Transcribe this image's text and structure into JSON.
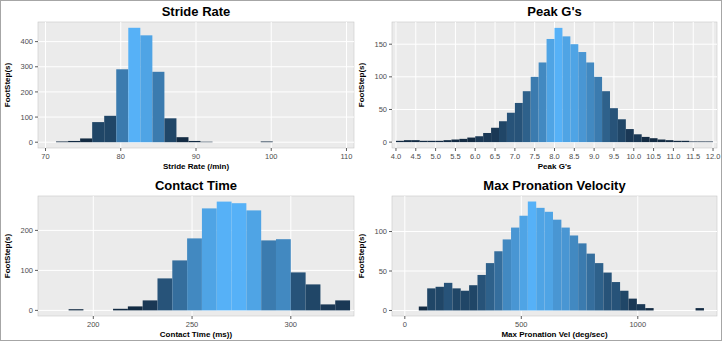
{
  "chart_data": [
    {
      "type": "histogram",
      "title": "Stride Rate",
      "x_label": "Stride Rate (/min)",
      "y_label": "FootStep(s)",
      "bins": [
        71.4,
        73,
        74.6,
        76.2,
        77.8,
        79.4,
        81,
        82.6,
        84.2,
        85.8,
        87.4,
        89,
        90.6,
        92.2,
        93.8,
        95.4,
        97,
        98.6,
        100.2
      ],
      "values": [
        3,
        5,
        15,
        80,
        105,
        290,
        455,
        425,
        280,
        95,
        20,
        5,
        2,
        0,
        0,
        0,
        0,
        3
      ],
      "colors": [
        "#132B43",
        "#132B43",
        "#132B43",
        "#204667",
        "#204667",
        "#3B7BAF",
        "#56B1F7",
        "#4FA4E5",
        "#3B7BAF",
        "#204667",
        "#132B43",
        "#132B43",
        "#132B43",
        "#132B43",
        "#132B43",
        "#132B43",
        "#132B43",
        "#132B43"
      ],
      "xlim": [
        69,
        111
      ],
      "xticks": [
        70,
        80,
        90,
        100,
        110
      ],
      "ylim": [
        -23,
        478
      ],
      "yticks": [
        0,
        100,
        200,
        300,
        400
      ],
      "grid": true
    },
    {
      "type": "histogram",
      "title": "Peak G's",
      "x_label": "Peak G's",
      "y_label": "FootStep(s)",
      "bins": [
        4,
        4.2,
        4.4,
        4.6,
        4.8,
        5,
        5.2,
        5.4,
        5.6,
        5.8,
        6,
        6.2,
        6.4,
        6.6,
        6.8,
        7,
        7.2,
        7.4,
        7.6,
        7.8,
        8,
        8.2,
        8.4,
        8.6,
        8.8,
        9,
        9.2,
        9.4,
        9.6,
        9.8,
        10,
        10.2,
        10.4,
        10.6,
        10.8,
        11,
        11.2,
        11.4,
        11.6,
        11.8,
        12
      ],
      "values": [
        2,
        3,
        3,
        2,
        2,
        2,
        3,
        4,
        5,
        7,
        9,
        14,
        22,
        32,
        45,
        60,
        78,
        100,
        122,
        158,
        175,
        162,
        150,
        138,
        122,
        100,
        78,
        52,
        35,
        20,
        12,
        8,
        6,
        4,
        3,
        2,
        2,
        1,
        1,
        1
      ],
      "colors": [
        "#132B43",
        "#132B43",
        "#132B43",
        "#132B43",
        "#132B43",
        "#132B43",
        "#132B43",
        "#132B43",
        "#132B43",
        "#132B43",
        "#1A3855",
        "#1A3855",
        "#1A3855",
        "#204667",
        "#275379",
        "#275379",
        "#2E618B",
        "#3B7BAF",
        "#4289C1",
        "#4FA4E5",
        "#56B1F7",
        "#4FA4E5",
        "#4FA4E5",
        "#4996D3",
        "#4289C1",
        "#3B7BAF",
        "#2E618B",
        "#275379",
        "#204667",
        "#1A3855",
        "#1A3855",
        "#132B43",
        "#132B43",
        "#132B43",
        "#132B43",
        "#132B43",
        "#132B43",
        "#132B43",
        "#132B43",
        "#132B43"
      ],
      "xlim": [
        3.9,
        12.1
      ],
      "xticks": [
        {
          "value": 4,
          "label": "4.0"
        },
        4.5,
        {
          "value": 5,
          "label": "5.0"
        },
        5.5,
        {
          "value": 6,
          "label": "6.0"
        },
        6.5,
        {
          "value": 7,
          "label": "7.0"
        },
        7.5,
        {
          "value": 8,
          "label": "8.0"
        },
        8.5,
        {
          "value": 9,
          "label": "9.0"
        },
        9.5,
        {
          "value": 10,
          "label": "10.0"
        },
        10.5,
        {
          "value": 11,
          "label": "11.0"
        },
        11.5,
        {
          "value": 12,
          "label": "12.0"
        }
      ],
      "ylim": [
        -9,
        184
      ],
      "yticks": [
        0,
        50,
        100,
        150
      ],
      "grid": true
    },
    {
      "type": "histogram",
      "title": "Contact Time",
      "x_label": "Contact Time (ms))",
      "y_label": "FootStep(s)",
      "bins": [
        187.5,
        195,
        202.5,
        210,
        217.5,
        225,
        232.5,
        240,
        247.5,
        255,
        262.5,
        270,
        277.5,
        285,
        292.5,
        300,
        307.5,
        315,
        322.5,
        330
      ],
      "values": [
        3,
        0,
        0,
        4,
        10,
        25,
        80,
        125,
        180,
        255,
        272,
        268,
        250,
        175,
        178,
        95,
        65,
        15,
        25
      ],
      "colors": [
        "#132B43",
        "#132B43",
        "#132B43",
        "#132B43",
        "#132B43",
        "#1A3855",
        "#275379",
        "#356E9D",
        "#4289C1",
        "#4FA4E5",
        "#56B1F7",
        "#56B1F7",
        "#4FA4E5",
        "#3B7BAF",
        "#4289C1",
        "#275379",
        "#204667",
        "#1A3855",
        "#1A3855"
      ],
      "xlim": [
        172,
        332
      ],
      "xticks": [
        200,
        250,
        300
      ],
      "ylim": [
        -14,
        286
      ],
      "yticks": [
        0,
        100,
        200
      ],
      "grid": true
    },
    {
      "type": "histogram",
      "title": "Max Pronation Velocity",
      "x_label": "Max Pronation Vel (deg/sec)",
      "y_label": "FootStep(s)",
      "bins": [
        60,
        96,
        132,
        168,
        204,
        240,
        276,
        312,
        348,
        384,
        420,
        456,
        492,
        528,
        564,
        600,
        636,
        672,
        708,
        744,
        780,
        816,
        852,
        888,
        924,
        960,
        996,
        1032,
        1068,
        1104,
        1140,
        1176,
        1212,
        1248,
        1284
      ],
      "values": [
        5,
        28,
        30,
        35,
        28,
        25,
        32,
        45,
        60,
        75,
        90,
        105,
        120,
        138,
        130,
        125,
        115,
        105,
        95,
        85,
        72,
        60,
        48,
        36,
        25,
        15,
        8,
        3,
        0,
        0,
        0,
        0,
        0,
        3
      ],
      "colors": [
        "#132B43",
        "#204667",
        "#204667",
        "#275379",
        "#204667",
        "#204667",
        "#204667",
        "#275379",
        "#2E618B",
        "#356E9D",
        "#4289C1",
        "#4996D3",
        "#4FA4E5",
        "#56B1F7",
        "#4FA4E5",
        "#4FA4E5",
        "#4996D3",
        "#4996D3",
        "#4289C1",
        "#3B7BAF",
        "#356E9D",
        "#2E618B",
        "#275379",
        "#275379",
        "#204667",
        "#1A3855",
        "#1A3855",
        "#132B43",
        "#132B43",
        "#132B43",
        "#132B43",
        "#132B43",
        "#132B43",
        "#132B43"
      ],
      "xlim": [
        -55,
        1340
      ],
      "xticks": [
        0,
        500,
        1000
      ],
      "ylim": [
        -7,
        145
      ],
      "yticks": [
        0,
        50,
        100
      ],
      "grid": true
    }
  ]
}
